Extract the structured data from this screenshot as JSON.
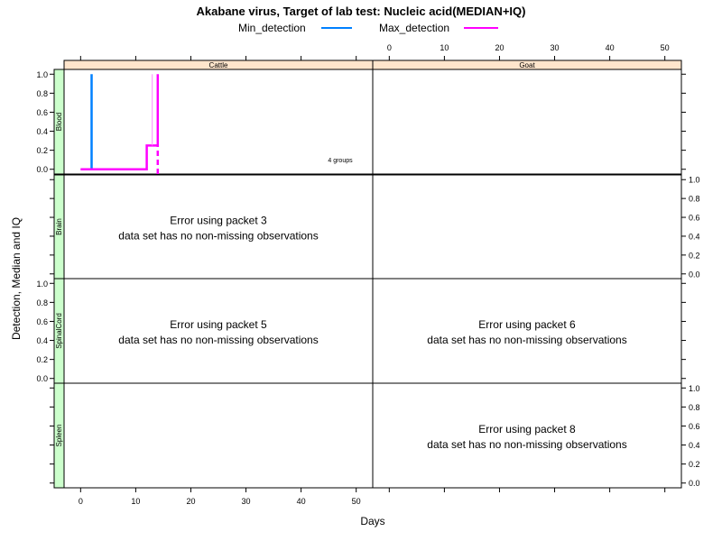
{
  "chart_data": {
    "type": "line",
    "title": "Akabane virus, Target of lab test: Nucleic acid(MEDIAN+IQ)",
    "xlabel": "Days",
    "ylabel": "Detection, Median and IQ",
    "xlim": [
      -3,
      53
    ],
    "ylim": [
      -0.05,
      1.05
    ],
    "x_ticks": [
      0,
      10,
      20,
      30,
      40,
      50
    ],
    "y_ticks": [
      0.0,
      0.2,
      0.4,
      0.6,
      0.8,
      1.0
    ],
    "x_tick_labels": [
      "0",
      "10",
      "20",
      "30",
      "40",
      "50"
    ],
    "y_tick_labels": [
      "0.0",
      "0.2",
      "0.4",
      "0.6",
      "0.8",
      "1.0"
    ],
    "legend": {
      "placement": "top",
      "entries": [
        {
          "name": "Min_detection",
          "color": "#0080ff"
        },
        {
          "name": "Max_detection",
          "color": "#ff00ff"
        }
      ]
    },
    "columns": [
      "Cattle",
      "Goat"
    ],
    "rows": [
      "Blood",
      "Brain",
      "SpinalCord",
      "Spleen"
    ],
    "panels": [
      {
        "column": "Cattle",
        "row": "Blood",
        "note": "4 groups",
        "series": [
          {
            "name": "Min_detection",
            "color": "#0080ff",
            "x": [
              2,
              2
            ],
            "y": [
              0,
              1
            ]
          },
          {
            "name": "Max_detection",
            "color": "#ff00ff",
            "x": [
              0,
              12,
              12,
              14,
              14
            ],
            "y": [
              0,
              0,
              0.25,
              0.25,
              1
            ]
          },
          {
            "name": "Max_detection IQ",
            "color": "#ff00ff",
            "style": "dashed",
            "x": [
              14,
              14
            ],
            "y": [
              -0.05,
              0.25
            ]
          },
          {
            "name": "Max_detection IQ",
            "color": "#ff88ff",
            "style": "thin",
            "x": [
              13,
              13
            ],
            "y": [
              0.25,
              1
            ]
          }
        ]
      },
      {
        "column": "Goat",
        "row": "Blood",
        "series": []
      },
      {
        "column": "Cattle",
        "row": "Brain",
        "error": [
          "Error using packet 3",
          "data set has no non-missing observations"
        ]
      },
      {
        "column": "Goat",
        "row": "Brain",
        "series": []
      },
      {
        "column": "Cattle",
        "row": "SpinalCord",
        "error": [
          "Error using packet 5",
          "data set has no non-missing observations"
        ]
      },
      {
        "column": "Goat",
        "row": "SpinalCord",
        "error": [
          "Error using packet 6",
          "data set has no non-missing observations"
        ]
      },
      {
        "column": "Cattle",
        "row": "Spleen",
        "series": []
      },
      {
        "column": "Goat",
        "row": "Spleen",
        "error": [
          "Error using packet 8",
          "data set has no non-missing observations"
        ]
      }
    ]
  }
}
